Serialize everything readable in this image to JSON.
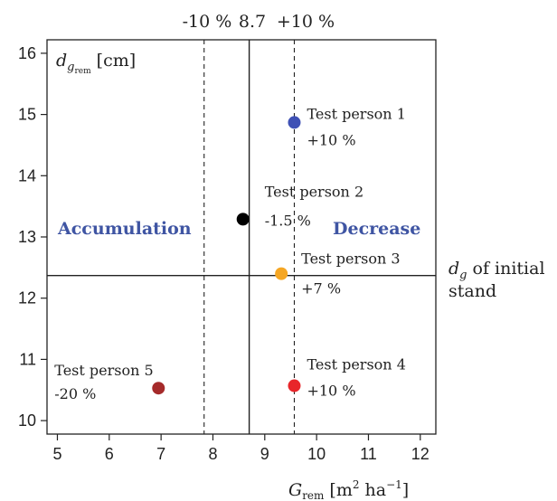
{
  "chart_data": {
    "type": "scatter",
    "xlabel": "G",
    "xlabel_sub": "rem",
    "xlabel_unit_pre": "[m",
    "xlabel_unit_sup1": "2",
    "xlabel_unit_mid": "ha",
    "xlabel_unit_sup2": "−1",
    "xlabel_unit_post": "]",
    "ylabel": "d",
    "ylabel_sub": "g",
    "ylabel_subsub": "rem",
    "ylabel_unit": "[cm]",
    "xlim": [
      4.8,
      12.3
    ],
    "ylim": [
      9.78,
      16.22
    ],
    "x_ticks": [
      5,
      6,
      7,
      8,
      9,
      10,
      11,
      12
    ],
    "y_ticks": [
      10,
      11,
      12,
      13,
      14,
      15,
      16
    ],
    "reference_lines": {
      "vertical_solid": 8.7,
      "vertical_dashed": [
        7.83,
        9.57
      ],
      "horizontal_solid": 12.37
    },
    "top_labels": [
      "-10 %",
      "8.7",
      "+10 %"
    ],
    "regions": {
      "left": "Accumulation",
      "right": "Decrease"
    },
    "initial_stand_label": [
      "d",
      "g",
      "of initial",
      "stand"
    ],
    "points": [
      {
        "name": "Test person 1",
        "change": "+10 %",
        "x": 9.57,
        "y": 14.87,
        "color": "#3f51b5"
      },
      {
        "name": "Test person 2",
        "change": "-1.5 %",
        "x": 8.58,
        "y": 13.29,
        "color": "#000000"
      },
      {
        "name": "Test person 3",
        "change": "+7 %",
        "x": 9.32,
        "y": 12.4,
        "color": "#f5a623"
      },
      {
        "name": "Test person 4",
        "change": "+10 %",
        "x": 9.57,
        "y": 10.57,
        "color": "#e8262a"
      },
      {
        "name": "Test person 5",
        "change": "-20 %",
        "x": 6.95,
        "y": 10.53,
        "color": "#a52a2a"
      }
    ]
  }
}
